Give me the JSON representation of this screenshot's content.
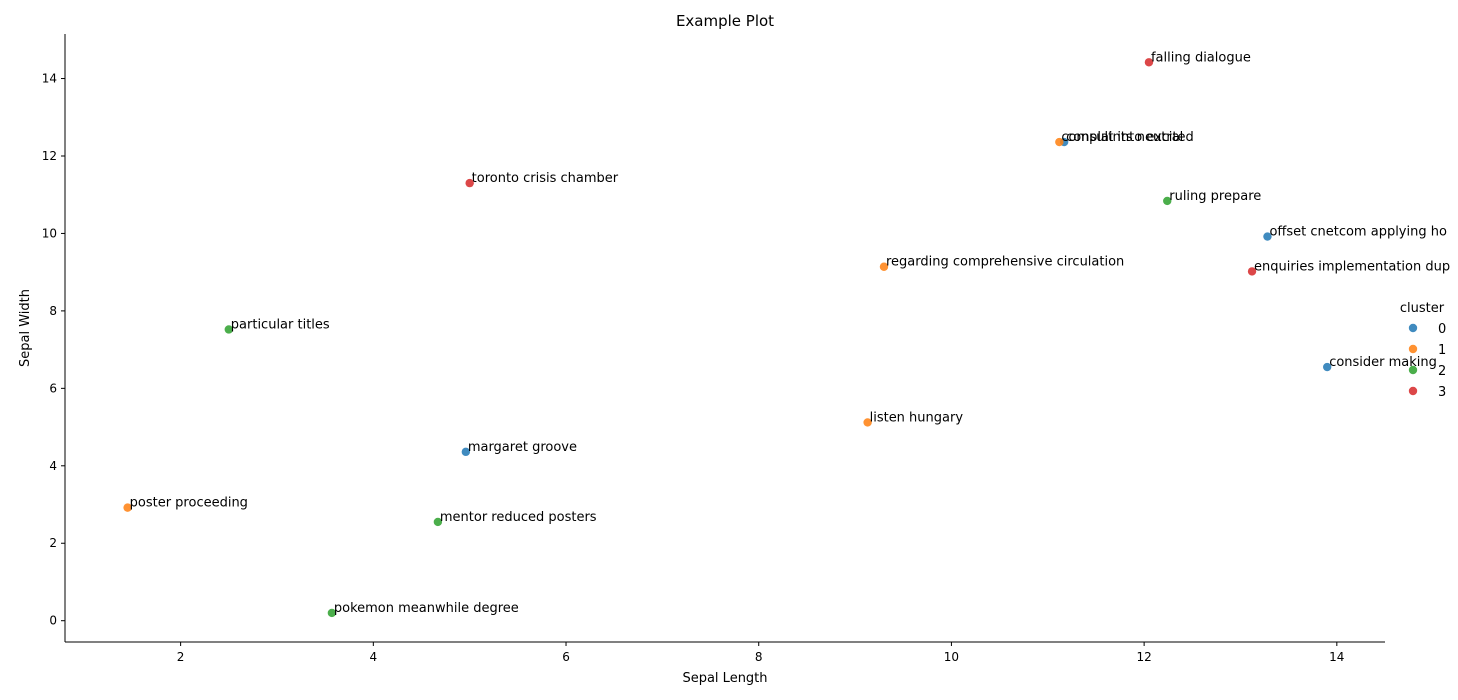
{
  "chart_data": {
    "type": "scatter",
    "title": "Example Plot",
    "xlabel": "Sepal Length",
    "ylabel": "Sepal Width",
    "xlim": [
      0.8,
      14.5
    ],
    "ylim": [
      -0.55,
      15.15
    ],
    "xticks": [
      2,
      4,
      6,
      8,
      10,
      12,
      14
    ],
    "yticks": [
      0,
      2,
      4,
      6,
      8,
      10,
      12,
      14
    ],
    "grid": false,
    "legend": {
      "title": "cluster",
      "placement": "right",
      "entries": [
        {
          "label": "0",
          "color": "#1f77b4"
        },
        {
          "label": "1",
          "color": "#ff7f0e"
        },
        {
          "label": "2",
          "color": "#2ca02c"
        },
        {
          "label": "3",
          "color": "#d62728"
        }
      ]
    },
    "points": [
      {
        "x": 12.05,
        "y": 14.42,
        "cluster": 3,
        "label": "falling dialogue"
      },
      {
        "x": 11.17,
        "y": 12.36,
        "cluster": 0,
        "label": "consult into excited"
      },
      {
        "x": 11.12,
        "y": 12.36,
        "cluster": 1,
        "label": "complaints neutral"
      },
      {
        "x": 5.0,
        "y": 11.3,
        "cluster": 3,
        "label": "toronto crisis chamber"
      },
      {
        "x": 12.24,
        "y": 10.84,
        "cluster": 2,
        "label": "ruling prepare"
      },
      {
        "x": 13.28,
        "y": 9.92,
        "cluster": 0,
        "label": "offset cnetcom applying ho"
      },
      {
        "x": 9.3,
        "y": 9.14,
        "cluster": 1,
        "label": "regarding comprehensive circulation"
      },
      {
        "x": 13.12,
        "y": 9.02,
        "cluster": 3,
        "label": "enquiries implementation dup"
      },
      {
        "x": 2.5,
        "y": 7.52,
        "cluster": 2,
        "label": "particular titles"
      },
      {
        "x": 13.9,
        "y": 6.55,
        "cluster": 0,
        "label": "consider making"
      },
      {
        "x": 9.13,
        "y": 5.12,
        "cluster": 1,
        "label": "listen hungary"
      },
      {
        "x": 4.96,
        "y": 4.36,
        "cluster": 0,
        "label": "margaret groove"
      },
      {
        "x": 1.45,
        "y": 2.92,
        "cluster": 1,
        "label": "poster proceeding"
      },
      {
        "x": 4.67,
        "y": 2.55,
        "cluster": 2,
        "label": "mentor reduced posters"
      },
      {
        "x": 3.57,
        "y": 0.2,
        "cluster": 2,
        "label": "pokemon meanwhile degree"
      }
    ]
  }
}
